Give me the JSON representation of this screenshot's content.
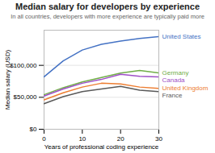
{
  "chart_data": {
    "type": "line",
    "title": "Median salary for developers by experience",
    "subtitle": "In all countries, developers with more experience are typically paid more",
    "xlabel": "Years of professional coding experience",
    "ylabel": "Median salary (USD)",
    "x": [
      0,
      5,
      10,
      15,
      20,
      25,
      30
    ],
    "series": [
      {
        "name": "United States",
        "color": "#4472c4",
        "values": [
          82000,
          107000,
          124000,
          133000,
          138000,
          142000,
          145000
        ]
      },
      {
        "name": "Germany",
        "color": "#70ad47",
        "values": [
          54000,
          65000,
          74000,
          81000,
          88000,
          92000,
          88000
        ]
      },
      {
        "name": "Canada",
        "color": "#9e4fc6",
        "values": [
          52000,
          63000,
          72000,
          78000,
          86000,
          83000,
          82000
        ]
      },
      {
        "name": "United Kingdom",
        "color": "#ed7d31",
        "values": [
          46000,
          57000,
          66000,
          72000,
          71000,
          66000,
          64000
        ]
      },
      {
        "name": "France",
        "color": "#595959",
        "values": [
          40000,
          51000,
          59000,
          63000,
          67000,
          61000,
          59000
        ]
      }
    ],
    "xlim": [
      0,
      30
    ],
    "ylim": [
      0,
      155000
    ],
    "xticks": [
      0,
      10,
      20,
      30
    ],
    "yticks": [
      {
        "value": 0,
        "label": "$0"
      },
      {
        "value": 50000,
        "label": "$50,000"
      },
      {
        "value": 100000,
        "label": "$100,000"
      }
    ],
    "grid": "y"
  }
}
